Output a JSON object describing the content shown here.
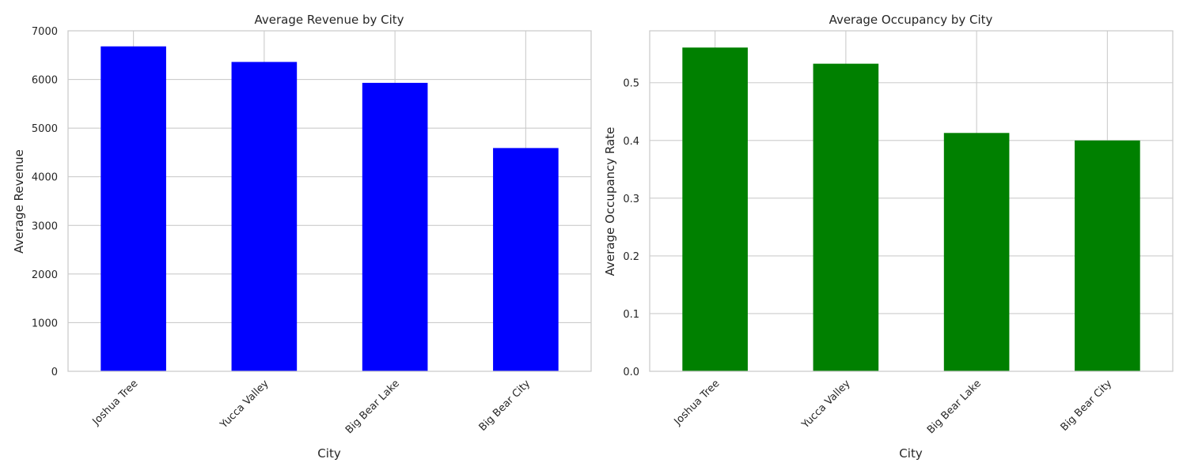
{
  "figure": {
    "background": "#ffffff"
  },
  "chart_data": [
    {
      "type": "bar",
      "title": "Average Revenue by City",
      "xlabel": "City",
      "ylabel": "Average Revenue",
      "categories": [
        "Joshua Tree",
        "Yucca Valley",
        "Big Bear Lake",
        "Big Bear City"
      ],
      "values": [
        6680,
        6360,
        5930,
        4590
      ],
      "ylim": [
        0,
        7000
      ],
      "yticks": [
        "0",
        "1000",
        "2000",
        "3000",
        "4000",
        "5000",
        "6000",
        "7000"
      ],
      "ytick_values": [
        0,
        1000,
        2000,
        3000,
        4000,
        5000,
        6000,
        7000
      ],
      "grid": true,
      "color": "#0000ff"
    },
    {
      "type": "bar",
      "title": "Average Occupancy by City",
      "xlabel": "City",
      "ylabel": "Average Occupancy Rate",
      "categories": [
        "Joshua Tree",
        "Yucca Valley",
        "Big Bear Lake",
        "Big Bear City"
      ],
      "values": [
        0.561,
        0.533,
        0.413,
        0.4
      ],
      "ylim": [
        0,
        0.59
      ],
      "yticks": [
        "0.0",
        "0.1",
        "0.2",
        "0.3",
        "0.4",
        "0.5"
      ],
      "ytick_values": [
        0,
        0.1,
        0.2,
        0.3,
        0.4,
        0.5
      ],
      "grid": true,
      "color": "#008000"
    }
  ]
}
